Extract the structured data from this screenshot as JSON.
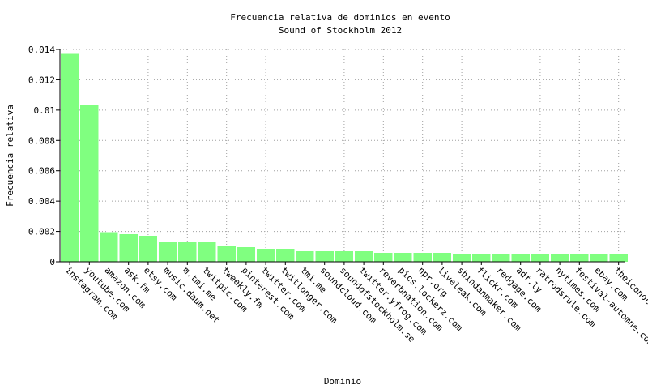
{
  "chart_data": {
    "type": "bar",
    "title": "Frecuencia relativa de dominios en evento",
    "subtitle": "Sound of Stockholm 2012",
    "xlabel": "Dominio",
    "ylabel": "Frecuencia relativa",
    "ylim": [
      0,
      0.014
    ],
    "yticks": [
      "0",
      "0.002",
      "0.004",
      "0.006",
      "0.008",
      "0.01",
      "0.012",
      "0.014"
    ],
    "grid": true,
    "bar_color": "#80ff80",
    "categories": [
      "instagram.com",
      "youtube.com",
      "amazon.com",
      "ask.fm",
      "etsy.com",
      "music.daum.net",
      "m.tmi.me",
      "twitpic.com",
      "tweekly.fm",
      "pinterest.com",
      "twitter.com",
      "twitlonger.com",
      "tmi.me",
      "soundcloud.com",
      "soundofstockholm.se",
      "twitter.yfrog.com",
      "reverbnation.com",
      "pics.lockerz.com",
      "npr.org",
      "liveleak.com",
      "shindanmaker.com",
      "flickr.com",
      "redgage.com",
      "adf.ly",
      "ratrodsrule.com",
      "nytimes.com",
      "festival-automne.com",
      "ebay.com",
      "theiconoclasts.com"
    ],
    "values": [
      0.0137,
      0.0103,
      0.00195,
      0.00183,
      0.0017,
      0.0013,
      0.0013,
      0.0013,
      0.00105,
      0.00095,
      0.00085,
      0.00085,
      0.0007,
      0.0007,
      0.0007,
      0.0007,
      0.0006,
      0.0006,
      0.0006,
      0.0006,
      0.00048,
      0.00048,
      0.00048,
      0.00048,
      0.00048,
      0.00048,
      0.00048,
      0.00048,
      0.00048
    ]
  }
}
